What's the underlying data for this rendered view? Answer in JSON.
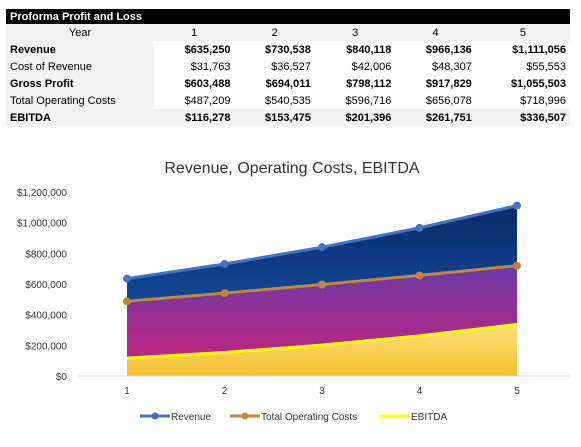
{
  "table": {
    "title": "Proforma Profit and Loss",
    "year_label": "Year",
    "years": [
      "1",
      "2",
      "3",
      "4",
      "5"
    ],
    "rows": [
      {
        "label": "Revenue",
        "bold": true,
        "values": [
          "$635,250",
          "$730,538",
          "$840,118",
          "$966,136",
          "$1,111,056"
        ]
      },
      {
        "label": "Cost of Revenue",
        "bold": false,
        "values": [
          "$31,763",
          "$36,527",
          "$42,006",
          "$48,307",
          "$55,553"
        ]
      },
      {
        "label": "Gross Profit",
        "bold": true,
        "values": [
          "$603,488",
          "$694,011",
          "$798,112",
          "$917,829",
          "$1,055,503"
        ]
      },
      {
        "label": "Total Operating Costs",
        "bold": false,
        "values": [
          "$487,209",
          "$540,535",
          "$596,716",
          "$656,078",
          "$718,996"
        ]
      },
      {
        "label": "EBITDA",
        "bold": true,
        "values": [
          "$116,278",
          "$153,475",
          "$201,396",
          "$261,751",
          "$336,507"
        ]
      }
    ]
  },
  "chart_data": {
    "type": "area",
    "title": "Revenue, Operating Costs, EBITDA",
    "categories": [
      "1",
      "2",
      "3",
      "4",
      "5"
    ],
    "ylim": [
      0,
      1200000
    ],
    "yticks": [
      0,
      200000,
      400000,
      600000,
      800000,
      1000000,
      1200000
    ],
    "ytick_labels": [
      "$0",
      "$200,000",
      "$400,000",
      "$600,000",
      "$800,000",
      "$1,000,000",
      "$1,200,000"
    ],
    "grid": false,
    "legend_position": "bottom",
    "series": [
      {
        "name": "Revenue",
        "values": [
          635250,
          730538,
          840118,
          966136,
          1111056
        ],
        "line_color": "#4472c4"
      },
      {
        "name": "Total Operating Costs",
        "values": [
          487209,
          540535,
          596716,
          656078,
          718996
        ],
        "line_color": "#c0883c"
      },
      {
        "name": "EBITDA",
        "values": [
          116278,
          153475,
          201396,
          261751,
          336507
        ],
        "line_color": "#ffff00"
      }
    ]
  }
}
